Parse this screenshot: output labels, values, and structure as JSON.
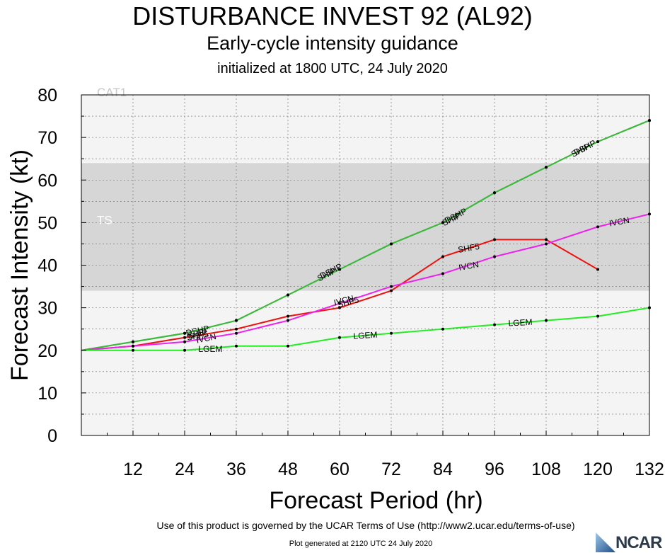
{
  "header": {
    "title": "DISTURBANCE INVEST 92 (AL92)",
    "subtitle": "Early-cycle intensity guidance",
    "init": "initialized at 1800 UTC, 24 July 2020"
  },
  "footer": {
    "terms": "Use of this product is governed by the UCAR Terms of Use (http://www2.ucar.edu/terms-of-use)",
    "generated": "Plot generated at 2120 UTC   24 July 2020",
    "logo_text": "NCAR"
  },
  "chart_data": {
    "type": "line",
    "xlabel": "Forecast Period (hr)",
    "ylabel": "Forecast Intensity (kt)",
    "xlim": [
      0,
      132
    ],
    "ylim": [
      0,
      80
    ],
    "xticks": [
      "12",
      "24",
      "36",
      "48",
      "60",
      "72",
      "84",
      "96",
      "108",
      "120",
      "132"
    ],
    "yticks": [
      "0",
      "10",
      "20",
      "30",
      "40",
      "50",
      "60",
      "70",
      "80"
    ],
    "grid": true,
    "bands": [
      {
        "label": "TS",
        "from": 34,
        "to": 64,
        "color": "#d6d6d6"
      },
      {
        "label": "CAT1",
        "from": 64,
        "to": 80,
        "color": "#f4f4f4"
      }
    ],
    "below_band_color": "#f4f4f4",
    "series": [
      {
        "name": "DSHP",
        "color": "#3cb83c",
        "x": [
          0,
          12,
          24,
          36,
          48,
          60,
          72,
          84,
          96,
          108,
          120,
          132
        ],
        "y": [
          20,
          22,
          24,
          27,
          33,
          39,
          45,
          50,
          57,
          63,
          69,
          74
        ],
        "labels": [
          {
            "text": "DSHP",
            "x": 27,
            "y": 24.6,
            "angle": -12
          },
          {
            "text": "DSHP",
            "x": 58,
            "y": 38.6,
            "angle": -27
          },
          {
            "text": "DSHP",
            "x": 87,
            "y": 51.6,
            "angle": -27
          },
          {
            "text": "DSHP",
            "x": 117,
            "y": 67.6,
            "angle": -27
          }
        ]
      },
      {
        "name": "SHIP",
        "color": "#3cb83c",
        "x": [
          0,
          12,
          24,
          36,
          48,
          60,
          72,
          84,
          96,
          108,
          120,
          132
        ],
        "y": [
          20,
          22,
          24,
          27,
          33,
          39,
          45,
          50,
          57,
          63,
          69,
          74
        ],
        "labels": [
          {
            "text": "SHIP",
            "x": 27,
            "y": 23.8,
            "angle": -12
          },
          {
            "text": "SHIP",
            "x": 57,
            "y": 37.8,
            "angle": -27
          },
          {
            "text": "SHIP",
            "x": 86,
            "y": 50.8,
            "angle": -27
          },
          {
            "text": "SHIP",
            "x": 116,
            "y": 67.0,
            "angle": -27
          }
        ]
      },
      {
        "name": "SHF5",
        "color": "#ee1111",
        "x": [
          0,
          12,
          24,
          36,
          48,
          60,
          72,
          84,
          96,
          108,
          120
        ],
        "y": [
          20,
          21,
          23,
          25,
          28,
          30,
          34,
          42,
          46,
          46,
          39
        ],
        "labels": [
          {
            "text": "SHF5",
            "x": 27,
            "y": 23.4,
            "angle": -10
          },
          {
            "text": "SHF5",
            "x": 62,
            "y": 31.3,
            "angle": -14
          },
          {
            "text": "SHF5",
            "x": 90,
            "y": 44.0,
            "angle": -10
          }
        ]
      },
      {
        "name": "IVCN",
        "color": "#ee22ee",
        "x": [
          0,
          12,
          24,
          36,
          48,
          60,
          72,
          84,
          96,
          108,
          120,
          132
        ],
        "y": [
          20,
          21,
          22,
          24,
          27,
          31,
          35,
          38,
          42,
          45,
          49,
          52
        ],
        "labels": [
          {
            "text": "IVCN",
            "x": 29,
            "y": 22.8,
            "angle": -12
          },
          {
            "text": "IVCN",
            "x": 61,
            "y": 31.7,
            "angle": -14
          },
          {
            "text": "IVCN",
            "x": 90,
            "y": 39.8,
            "angle": -10
          },
          {
            "text": "IVCN",
            "x": 125,
            "y": 50.2,
            "angle": -10
          }
        ]
      },
      {
        "name": "LGEM",
        "color": "#22ee22",
        "x": [
          0,
          12,
          24,
          36,
          48,
          60,
          72,
          84,
          96,
          108,
          120,
          132
        ],
        "y": [
          20,
          20,
          20,
          21,
          21,
          23,
          24,
          25,
          26,
          27,
          28,
          30
        ],
        "labels": [
          {
            "text": "LGEM",
            "x": 30,
            "y": 20.3,
            "angle": 0
          },
          {
            "text": "LGEM",
            "x": 66,
            "y": 23.5,
            "angle": -4
          },
          {
            "text": "LGEM",
            "x": 102,
            "y": 26.5,
            "angle": -3
          }
        ]
      }
    ]
  }
}
